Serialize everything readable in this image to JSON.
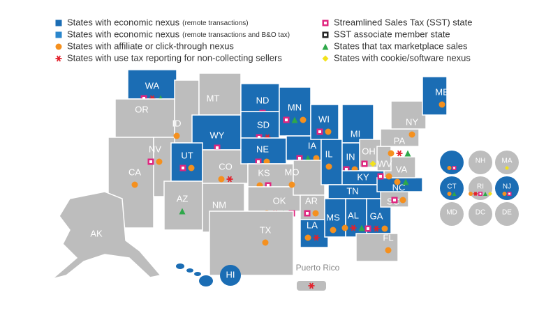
{
  "legend": [
    {
      "text": "States with economic nexus",
      "note": "(remote transactions)",
      "symbol": "square",
      "color": "#1b6db4"
    },
    {
      "text": "States with economic nexus",
      "note": "(remote transactions and B&O tax)",
      "symbol": "square",
      "color": "#2a86cc"
    },
    {
      "text": "States with affiliate or click-through nexus",
      "note": null,
      "symbol": "circle",
      "color": "#f5901e"
    },
    {
      "text": "States with use tax reporting for non-collecting sellers",
      "note": null,
      "symbol": "asterisk",
      "color": "#e3202b"
    },
    {
      "text": "Streamlined Sales Tax (SST) state",
      "note": null,
      "symbol": "hollow-square",
      "color": "#e0257f"
    },
    {
      "text": "SST associate member state",
      "note": null,
      "symbol": "hollow-square",
      "color": "#222222"
    },
    {
      "text": "States that tax marketplace sales",
      "note": null,
      "symbol": "triangle",
      "color": "#2ea84a"
    },
    {
      "text": "States with cookie/software nexus",
      "note": null,
      "symbol": "diamond",
      "color": "#f2e21b"
    }
  ],
  "colors": {
    "economic_nexus": "#1b6db4",
    "no_economic_nexus": "#bdbdbd"
  },
  "states": [
    {
      "label": "WA",
      "nexus": true,
      "markers": [
        4,
        3,
        6
      ]
    },
    {
      "label": "OR",
      "nexus": false,
      "markers": []
    },
    {
      "label": "CA",
      "nexus": false,
      "markers": [
        2
      ]
    },
    {
      "label": "NV",
      "nexus": false,
      "markers": [
        4,
        2
      ]
    },
    {
      "label": "ID",
      "nexus": false,
      "markers": [
        2
      ]
    },
    {
      "label": "MT",
      "nexus": false,
      "markers": []
    },
    {
      "label": "WY",
      "nexus": true,
      "markers": [
        4
      ]
    },
    {
      "label": "UT",
      "nexus": true,
      "markers": [
        4,
        2
      ]
    },
    {
      "label": "AZ",
      "nexus": false,
      "markers": [
        6
      ]
    },
    {
      "label": "CO",
      "nexus": false,
      "markers": [
        2,
        3
      ]
    },
    {
      "label": "NM",
      "nexus": false,
      "markers": []
    },
    {
      "label": "ND",
      "nexus": true,
      "markers": [
        4
      ]
    },
    {
      "label": "SD",
      "nexus": true,
      "markers": [
        4,
        3
      ]
    },
    {
      "label": "NE",
      "nexus": true,
      "markers": [
        4,
        2
      ]
    },
    {
      "label": "KS",
      "nexus": false,
      "markers": [
        2,
        4
      ]
    },
    {
      "label": "OK",
      "nexus": false,
      "markers": [
        2,
        3,
        6,
        4
      ]
    },
    {
      "label": "TX",
      "nexus": false,
      "markers": [
        2
      ]
    },
    {
      "label": "MN",
      "nexus": true,
      "markers": [
        4,
        6,
        2
      ]
    },
    {
      "label": "IA",
      "nexus": true,
      "markers": [
        4,
        6,
        2,
        7
      ]
    },
    {
      "label": "MO",
      "nexus": false,
      "markers": [
        2
      ]
    },
    {
      "label": "AR",
      "nexus": false,
      "markers": [
        4,
        2
      ]
    },
    {
      "label": "LA",
      "nexus": true,
      "markers": [
        2,
        3
      ]
    },
    {
      "label": "WI",
      "nexus": true,
      "markers": [
        4,
        2
      ]
    },
    {
      "label": "IL",
      "nexus": true,
      "markers": [
        2
      ]
    },
    {
      "label": "MI",
      "nexus": true,
      "markers": [
        4,
        2
      ]
    },
    {
      "label": "IN",
      "nexus": true,
      "markers": [
        4,
        2
      ]
    },
    {
      "label": "OH",
      "nexus": false,
      "markers": [
        4,
        7
      ]
    },
    {
      "label": "KY",
      "nexus": true,
      "markers": [
        4,
        3,
        2
      ]
    },
    {
      "label": "TN",
      "nexus": true,
      "markers": [
        5,
        3,
        2
      ]
    },
    {
      "label": "MS",
      "nexus": true,
      "markers": [
        2
      ]
    },
    {
      "label": "AL",
      "nexus": true,
      "markers": [
        2,
        3,
        6
      ]
    },
    {
      "label": "GA",
      "nexus": true,
      "markers": [
        4,
        3,
        2
      ]
    },
    {
      "label": "FL",
      "nexus": false,
      "markers": [
        2
      ]
    },
    {
      "label": "SC",
      "nexus": false,
      "markers": []
    },
    {
      "label": "NC",
      "nexus": true,
      "markers": [
        4,
        2
      ]
    },
    {
      "label": "VA",
      "nexus": false,
      "markers": [
        2,
        6
      ]
    },
    {
      "label": "WV",
      "nexus": false,
      "markers": [
        4,
        2
      ]
    },
    {
      "label": "PA",
      "nexus": false,
      "markers": [
        2,
        3,
        6
      ]
    },
    {
      "label": "NY",
      "nexus": false,
      "markers": [
        2
      ]
    },
    {
      "label": "ME",
      "nexus": true,
      "markers": [
        2
      ]
    },
    {
      "label": "AK",
      "nexus": false,
      "markers": []
    },
    {
      "label": "HI",
      "nexus": true,
      "markers": []
    },
    {
      "label": null,
      "nexus": true,
      "markers": [
        2,
        4
      ]
    },
    {
      "label": "NH",
      "nexus": false,
      "markers": []
    },
    {
      "label": "MA",
      "nexus": false,
      "markers": [
        7
      ]
    },
    {
      "label": "CT",
      "nexus": true,
      "markers": [
        2,
        6
      ]
    },
    {
      "label": "RI",
      "nexus": false,
      "markers": [
        2,
        3,
        4,
        6,
        7
      ]
    },
    {
      "label": "NJ",
      "nexus": true,
      "markers": [
        2,
        4
      ]
    },
    {
      "label": "MD",
      "nexus": false,
      "markers": []
    },
    {
      "label": "DC",
      "nexus": false,
      "markers": []
    },
    {
      "label": "DE",
      "nexus": false,
      "markers": []
    }
  ],
  "puerto_rico": {
    "label": "Puerto Rico",
    "nexus": false,
    "markers": [
      3
    ]
  }
}
